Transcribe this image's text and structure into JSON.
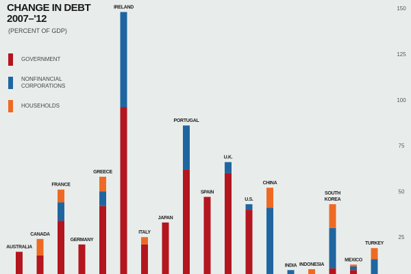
{
  "chart_data": {
    "type": "bar",
    "stacked": true,
    "title": "CHANGE IN DEBT 2007–'12",
    "title_lines": [
      "CHANGE IN DEBT",
      "2007–'12"
    ],
    "subtitle": "(PERCENT OF GDP)",
    "ylim": [
      0,
      150
    ],
    "yticks": [
      25,
      50,
      75,
      100,
      125,
      150
    ],
    "yaxis_position": "right",
    "grid": false,
    "legend_position": "top-left",
    "categories": [
      "AUSTRALIA",
      "CANADA",
      "FRANCE",
      "GERMANY",
      "GREECE",
      "IRELAND",
      "ITALY",
      "JAPAN",
      "PORTUGAL",
      "SPAIN",
      "U.K.",
      "U.S.",
      "CHINA",
      "INDIA",
      "INDONESIA",
      "SOUTH KOREA",
      "MEXICO",
      "TURKEY"
    ],
    "series": [
      {
        "name": "GOVERNMENT",
        "color": "#b3161f",
        "values": [
          17,
          15,
          34,
          21,
          42,
          96,
          21,
          33,
          62,
          47,
          60,
          40,
          0,
          0,
          0,
          8,
          7,
          0
        ]
      },
      {
        "name": "NONFINANCIAL CORPORATIONS",
        "color": "#1f66a0",
        "values": [
          0,
          0,
          10,
          0,
          8,
          52,
          0,
          0,
          24,
          0,
          6,
          3,
          41,
          7,
          0,
          22,
          2,
          13
        ]
      },
      {
        "name": "HOUSEHOLDS",
        "color": "#ee6a24",
        "values": [
          0,
          9,
          7,
          0,
          8,
          0,
          4,
          0,
          0,
          0,
          0,
          0,
          11,
          0,
          7.5,
          13,
          1,
          6
        ]
      }
    ]
  }
}
